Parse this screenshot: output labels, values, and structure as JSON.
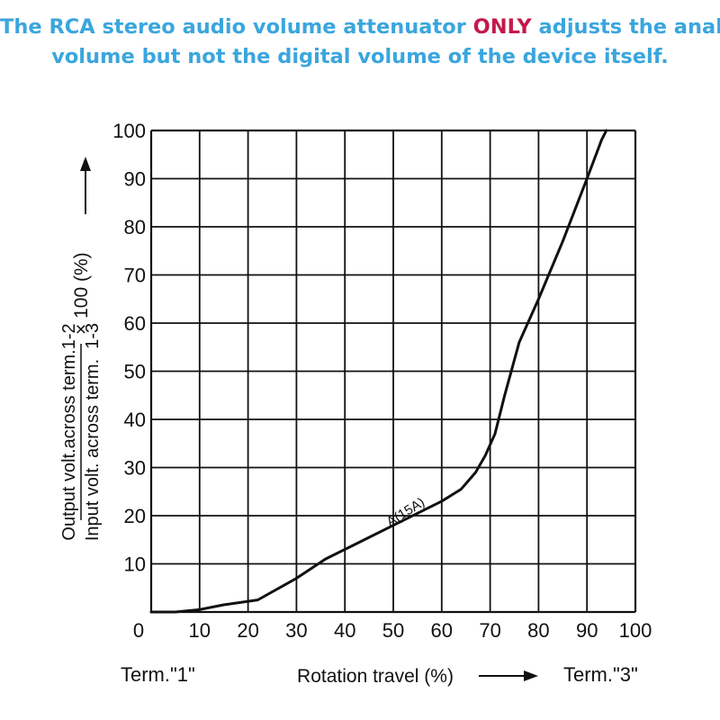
{
  "headline": {
    "line1_before": "The RCA stereo audio volume attenuator ",
    "line1_highlight": "ONLY",
    "line1_after": " adjusts the analog",
    "line2": "volume but not the digital volume of the device itself.",
    "text_color": "#3aa6dd",
    "highlight_color": "#c4184c"
  },
  "chart_data": {
    "type": "line",
    "ylabel_numerator": "Output volt.across term.1-2",
    "ylabel_denominator": "Input volt. across term.  1-3",
    "ylabel_suffix": "× 100 (%)",
    "xlabel": "Rotation travel (%)",
    "x_start_label": "Term.\"1\"",
    "x_end_label": "Term.\"3\"",
    "xlim": [
      0,
      100
    ],
    "ylim": [
      0,
      100
    ],
    "x_ticks": [
      0,
      10,
      20,
      30,
      40,
      50,
      60,
      70,
      80,
      90,
      100
    ],
    "y_ticks": [
      10,
      20,
      30,
      40,
      50,
      60,
      70,
      80,
      90,
      100
    ],
    "grid": true,
    "series": [
      {
        "name": "A(15A)",
        "x": [
          0,
          5,
          10,
          15,
          22,
          30,
          36,
          42,
          50,
          55,
          60,
          64,
          67,
          69,
          71,
          73,
          76,
          80,
          85,
          90,
          93,
          94
        ],
        "y": [
          0,
          0,
          0.5,
          1.5,
          2.5,
          7,
          11,
          14,
          18,
          20.5,
          23,
          25.5,
          29,
          32.5,
          37,
          45,
          56,
          65,
          77,
          90,
          98,
          100
        ]
      }
    ],
    "annotation": {
      "text": "A(15A)",
      "x": 53,
      "y": 20
    }
  }
}
